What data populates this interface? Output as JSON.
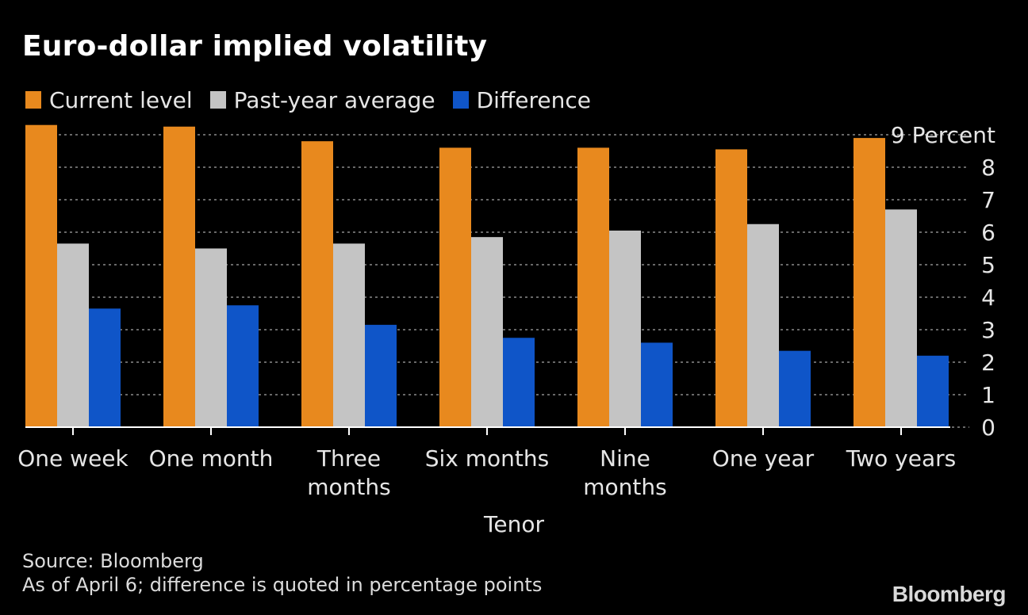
{
  "chart_data": {
    "type": "bar",
    "title": "Euro-dollar implied volatility",
    "xlabel": "Tenor",
    "ylabel": "Percent",
    "ylim": [
      0,
      9
    ],
    "yticks": [
      0,
      1,
      2,
      3,
      4,
      5,
      6,
      7,
      8,
      9
    ],
    "y_top_label": "9 Percent",
    "grid": true,
    "legend_position": "top-left",
    "categories": [
      [
        "One week"
      ],
      [
        "One month"
      ],
      [
        "Three",
        "months"
      ],
      [
        "Six months"
      ],
      [
        "Nine",
        "months"
      ],
      [
        "One year"
      ],
      [
        "Two years"
      ]
    ],
    "series": [
      {
        "name": "Current level",
        "color": "#e8891e",
        "values": [
          9.3,
          9.25,
          8.8,
          8.6,
          8.6,
          8.55,
          8.9
        ]
      },
      {
        "name": "Past-year average",
        "color": "#c4c4c4",
        "values": [
          5.65,
          5.5,
          5.65,
          5.85,
          6.05,
          6.25,
          6.7
        ]
      },
      {
        "name": "Difference",
        "color": "#0f55c8",
        "values": [
          3.65,
          3.75,
          3.15,
          2.75,
          2.6,
          2.35,
          2.2
        ]
      }
    ]
  },
  "footer": {
    "source": "Source: Bloomberg",
    "note": "As of April 6; difference is quoted in percentage points",
    "logo": "Bloomberg"
  }
}
